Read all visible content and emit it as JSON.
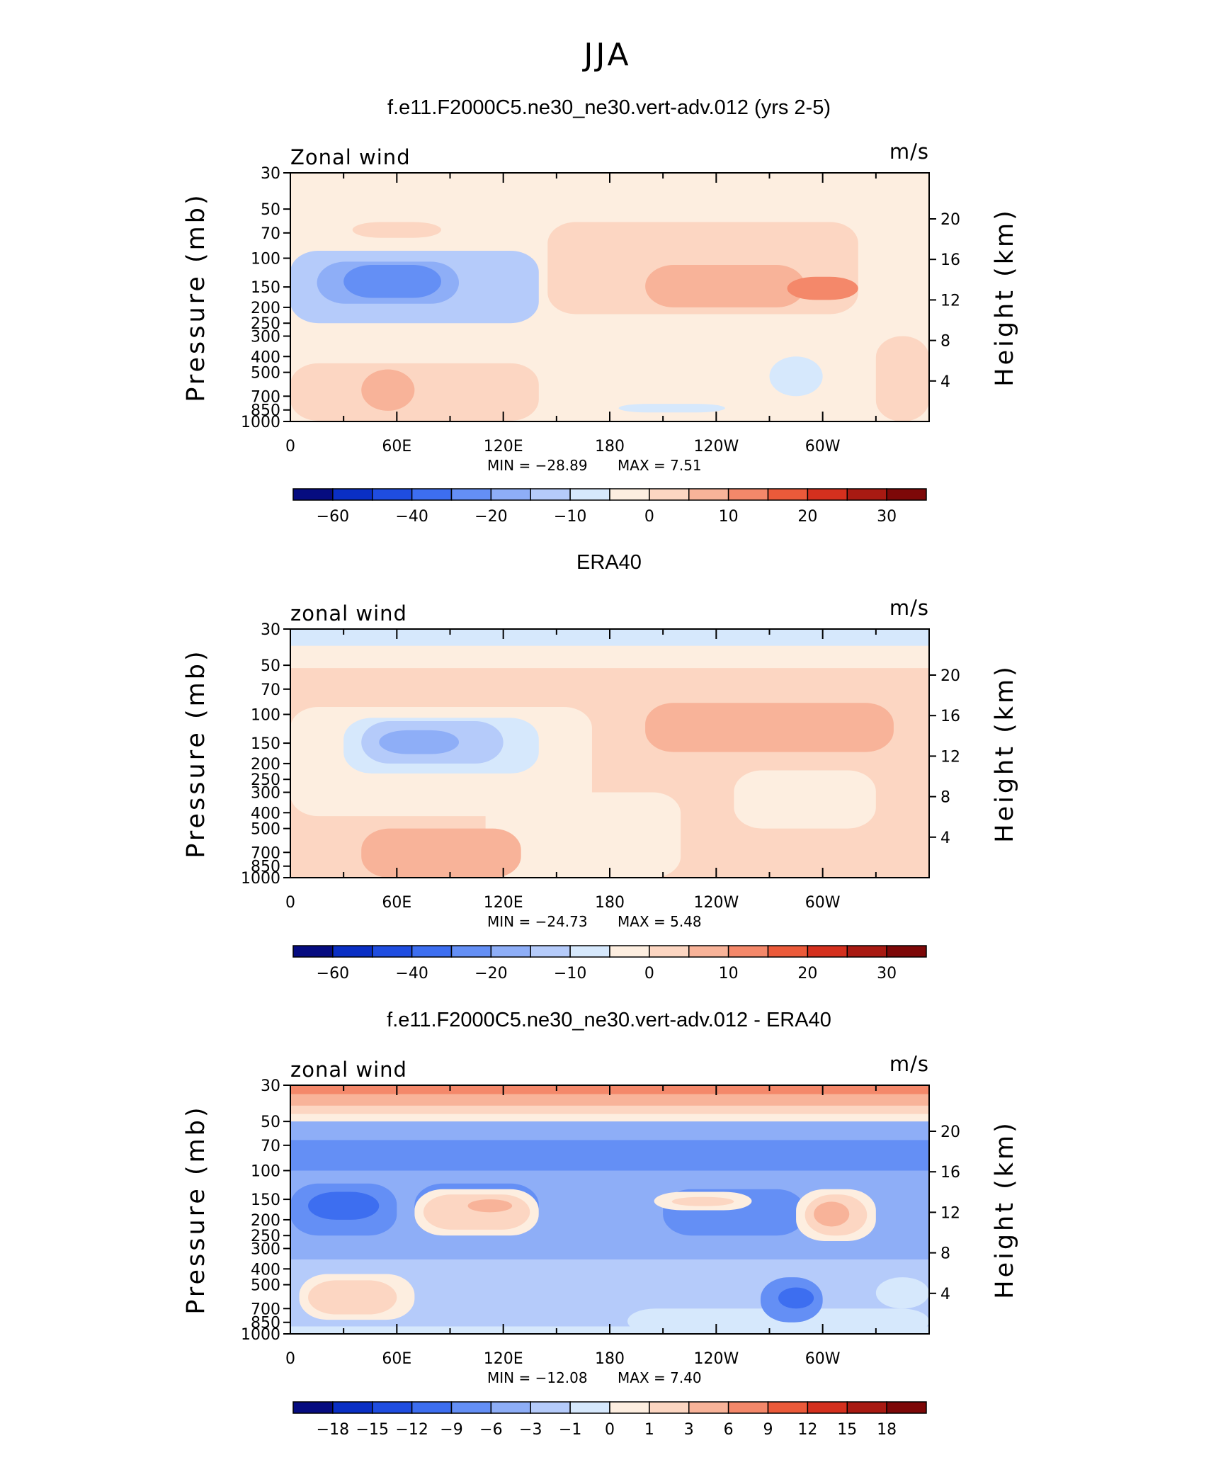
{
  "figure": {
    "title": "JJA"
  },
  "common": {
    "x_ticks": [
      "0",
      "60E",
      "120E",
      "180",
      "120W",
      "60W"
    ],
    "pressure_ticks": [
      30,
      50,
      70,
      100,
      150,
      200,
      250,
      300,
      400,
      500,
      700,
      850,
      1000
    ],
    "height_ticks": [
      4,
      8,
      12,
      16,
      20
    ],
    "y_label": "Pressure  (mb)",
    "y2_label": "Height  (km)",
    "units": "m/s"
  },
  "chart_data": [
    {
      "type": "heatmap",
      "title": "f.e11.F2000C5.ne30_ne30.vert-adv.012 (yrs 2-5)",
      "corner_left": "Zonal wind",
      "corner_right": "m/s",
      "x_range": [
        0,
        360
      ],
      "y_range_mb": [
        30,
        1000
      ],
      "min_text": "MIN = −28.89",
      "max_text": "MAX =    7.51",
      "min": -28.89,
      "max": 7.51,
      "levels": [
        -70,
        -60,
        -50,
        -40,
        -30,
        -20,
        -15,
        -10,
        -5,
        0,
        5,
        10,
        15,
        20,
        25,
        30,
        35
      ],
      "colorbar_labels": [
        "−60",
        "−40",
        "−20",
        "−10",
        "0",
        "10",
        "20",
        "30"
      ],
      "colorbar_label_edges": [
        1,
        3,
        5,
        7,
        9,
        11,
        13,
        15
      ],
      "features": [
        {
          "x_range": [
            10,
            350
          ],
          "p_range": [
            180,
            440
          ],
          "value": -5
        },
        {
          "x_range": [
            145,
            320
          ],
          "p_range": [
            60,
            220
          ],
          "value": 2
        },
        {
          "x_range": [
            35,
            85
          ],
          "p_range": [
            60,
            75
          ],
          "value": 2
        },
        {
          "x_range": [
            0,
            140
          ],
          "p_range": [
            440,
            990
          ],
          "value": 2
        },
        {
          "x_range": [
            40,
            70
          ],
          "p_range": [
            480,
            860
          ],
          "value": 7
        },
        {
          "x_range": [
            200,
            290
          ],
          "p_range": [
            110,
            200
          ],
          "value": 7
        },
        {
          "x_range": [
            280,
            320
          ],
          "p_range": [
            130,
            180
          ],
          "value": 12
        },
        {
          "x_range": [
            0,
            140
          ],
          "p_range": [
            90,
            250
          ],
          "value": -12
        },
        {
          "x_range": [
            15,
            95
          ],
          "p_range": [
            105,
            190
          ],
          "value": -17
        },
        {
          "x_range": [
            30,
            85
          ],
          "p_range": [
            110,
            175
          ],
          "value": -22
        },
        {
          "x_range": [
            40,
            80
          ],
          "p_range": [
            115,
            170
          ],
          "value": -27
        },
        {
          "x_range": [
            185,
            245
          ],
          "p_range": [
            780,
            880
          ],
          "value": -7
        },
        {
          "x_range": [
            270,
            300
          ],
          "p_range": [
            400,
            700
          ],
          "value": -7
        },
        {
          "x_range": [
            330,
            360
          ],
          "p_range": [
            300,
            1000
          ],
          "value": 2
        }
      ]
    },
    {
      "type": "heatmap",
      "title": "ERA40",
      "corner_left": "zonal wind",
      "corner_right": "m/s",
      "x_range": [
        0,
        360
      ],
      "y_range_mb": [
        30,
        1000
      ],
      "min_text": "MIN = −24.73",
      "max_text": "MAX =    5.48",
      "min": -24.73,
      "max": 5.48,
      "levels": [
        -70,
        -60,
        -50,
        -40,
        -30,
        -20,
        -15,
        -10,
        -5,
        0,
        5,
        10,
        15,
        20,
        25,
        30,
        35
      ],
      "colorbar_labels": [
        "−60",
        "−40",
        "−20",
        "−10",
        "0",
        "10",
        "20",
        "30"
      ],
      "colorbar_label_edges": [
        1,
        3,
        5,
        7,
        9,
        11,
        13,
        15
      ],
      "features": [
        {
          "x_range": [
            0,
            360
          ],
          "p_range": [
            52,
            1000
          ],
          "value": 2
        },
        {
          "x_range": [
            0,
            360
          ],
          "p_range": [
            30,
            52
          ],
          "value": -3
        },
        {
          "x_range": [
            0,
            360
          ],
          "p_range": [
            30,
            38
          ],
          "value": -7
        },
        {
          "x_range": [
            0,
            170
          ],
          "p_range": [
            90,
            420
          ],
          "value": -3
        },
        {
          "x_range": [
            110,
            220
          ],
          "p_range": [
            300,
            1000
          ],
          "value": -3
        },
        {
          "x_range": [
            250,
            330
          ],
          "p_range": [
            220,
            500
          ],
          "value": -3
        },
        {
          "x_range": [
            200,
            340
          ],
          "p_range": [
            85,
            170
          ],
          "value": 7
        },
        {
          "x_range": [
            40,
            130
          ],
          "p_range": [
            500,
            1000
          ],
          "value": 7
        },
        {
          "x_range": [
            30,
            140
          ],
          "p_range": [
            105,
            230
          ],
          "value": -7
        },
        {
          "x_range": [
            40,
            120
          ],
          "p_range": [
            110,
            200
          ],
          "value": -12
        },
        {
          "x_range": [
            50,
            95
          ],
          "p_range": [
            125,
            175
          ],
          "value": -17
        }
      ]
    },
    {
      "type": "heatmap",
      "title": "f.e11.F2000C5.ne30_ne30.vert-adv.012 - ERA40",
      "corner_left": "zonal wind",
      "corner_right": "m/s",
      "x_range": [
        0,
        360
      ],
      "y_range_mb": [
        30,
        1000
      ],
      "min_text": "MIN = −12.08",
      "max_text": "MAX =    7.40",
      "min": -12.08,
      "max": 7.4,
      "levels": [
        -21,
        -18,
        -15,
        -12,
        -9,
        -6,
        -3,
        -1,
        0,
        1,
        3,
        6,
        9,
        12,
        15,
        18,
        21
      ],
      "colorbar_labels": [
        "−18",
        "−15",
        "−12",
        "−9",
        "−6",
        "−3",
        "−1",
        "0",
        "1",
        "3",
        "6",
        "9",
        "12",
        "15",
        "18"
      ],
      "colorbar_label_edges": [
        1,
        2,
        3,
        4,
        5,
        6,
        7,
        8,
        9,
        10,
        11,
        12,
        13,
        14,
        15
      ],
      "features": [
        {
          "x_range": [
            0,
            360
          ],
          "p_range": [
            30,
            800
          ],
          "value": -4
        },
        {
          "x_range": [
            0,
            360
          ],
          "p_range": [
            30,
            50
          ],
          "value": 0.5
        },
        {
          "x_range": [
            0,
            360
          ],
          "p_range": [
            30,
            45
          ],
          "value": 2
        },
        {
          "x_range": [
            0,
            360
          ],
          "p_range": [
            30,
            40
          ],
          "value": 4
        },
        {
          "x_range": [
            0,
            360
          ],
          "p_range": [
            30,
            34
          ],
          "value": 7
        },
        {
          "x_range": [
            0,
            360
          ],
          "p_range": [
            65,
            100
          ],
          "value": -7
        },
        {
          "x_range": [
            0,
            60
          ],
          "p_range": [
            120,
            250
          ],
          "value": -7
        },
        {
          "x_range": [
            10,
            50
          ],
          "p_range": [
            135,
            200
          ],
          "value": -10
        },
        {
          "x_range": [
            70,
            140
          ],
          "p_range": [
            120,
            250
          ],
          "value": -7
        },
        {
          "x_range": [
            210,
            290
          ],
          "p_range": [
            130,
            250
          ],
          "value": -7
        },
        {
          "x_range": [
            0,
            360
          ],
          "p_range": [
            350,
            900
          ],
          "value": -2
        },
        {
          "x_range": [
            190,
            360
          ],
          "p_range": [
            700,
            1000
          ],
          "value": -0.5
        },
        {
          "x_range": [
            70,
            140
          ],
          "p_range": [
            130,
            250
          ],
          "value": 0.5
        },
        {
          "x_range": [
            75,
            135
          ],
          "p_range": [
            140,
            230
          ],
          "value": 2
        },
        {
          "x_range": [
            100,
            125
          ],
          "p_range": [
            150,
            180
          ],
          "value": 4
        },
        {
          "x_range": [
            205,
            260
          ],
          "p_range": [
            135,
            175
          ],
          "value": 0.5
        },
        {
          "x_range": [
            215,
            250
          ],
          "p_range": [
            145,
            165
          ],
          "value": 2
        },
        {
          "x_range": [
            285,
            330
          ],
          "p_range": [
            130,
            270
          ],
          "value": 0.5
        },
        {
          "x_range": [
            290,
            325
          ],
          "p_range": [
            140,
            250
          ],
          "value": 2
        },
        {
          "x_range": [
            295,
            315
          ],
          "p_range": [
            155,
            220
          ],
          "value": 4
        },
        {
          "x_range": [
            5,
            70
          ],
          "p_range": [
            430,
            820
          ],
          "value": 0.5
        },
        {
          "x_range": [
            10,
            60
          ],
          "p_range": [
            470,
            760
          ],
          "value": 2
        },
        {
          "x_range": [
            265,
            300
          ],
          "p_range": [
            450,
            850
          ],
          "value": -7
        },
        {
          "x_range": [
            275,
            295
          ],
          "p_range": [
            520,
            700
          ],
          "value": -10
        },
        {
          "x_range": [
            330,
            360
          ],
          "p_range": [
            450,
            700
          ],
          "value": -0.5
        }
      ]
    }
  ]
}
